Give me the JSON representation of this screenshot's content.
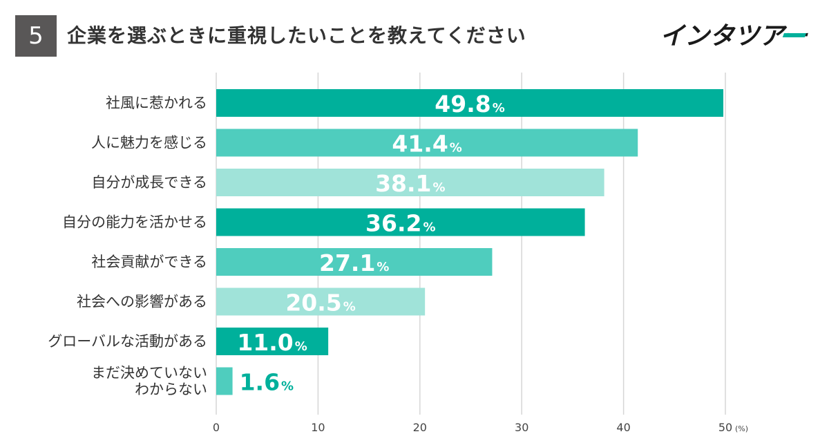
{
  "header": {
    "question_number": "5",
    "title": "企業を選ぶときに重視したいことを教えてください",
    "logo_text": "インタツアー"
  },
  "colors": {
    "dark_teal": "#00B09B",
    "mid_teal": "#4FCDBE",
    "light_teal": "#A0E3D9",
    "grid": "#d6d6d6",
    "header_box": "#595757",
    "logo_accent": "#00B09B"
  },
  "chart_data": {
    "type": "bar",
    "orientation": "horizontal",
    "categories": [
      [
        "社風に惹かれる"
      ],
      [
        "人に魅力を感じる"
      ],
      [
        "自分が成長できる"
      ],
      [
        "自分の能力を活かせる"
      ],
      [
        "社会貢献ができる"
      ],
      [
        "社会への影響がある"
      ],
      [
        "グローバルな活動がある"
      ],
      [
        "まだ決めていない",
        "わからない"
      ]
    ],
    "values": [
      49.8,
      41.4,
      38.1,
      36.2,
      27.1,
      20.5,
      11.0,
      1.6
    ],
    "value_labels": [
      "49.8",
      "41.4",
      "38.1",
      "36.2",
      "27.1",
      "20.5",
      "11.0",
      "1.6"
    ],
    "value_suffix": "%",
    "bar_color_keys": [
      "dark_teal",
      "mid_teal",
      "light_teal",
      "dark_teal",
      "mid_teal",
      "light_teal",
      "dark_teal",
      "mid_teal"
    ],
    "xlim": [
      0,
      50
    ],
    "x_ticks": [
      "0",
      "10",
      "20",
      "30",
      "40",
      "50"
    ],
    "x_unit": "(%)",
    "grid": true,
    "legend": "none"
  }
}
